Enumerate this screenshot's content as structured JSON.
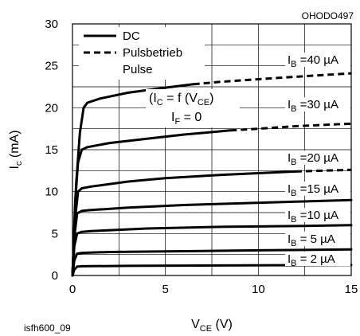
{
  "doc_code": "OHODO497",
  "figure_id": "isfh600_09",
  "chart_data": {
    "type": "line",
    "xlabel": "VCE (V)",
    "ylabel": "Ic (mA)",
    "xlim": [
      0,
      15
    ],
    "ylim": [
      0,
      30
    ],
    "x_ticks": [
      0,
      5,
      10,
      15
    ],
    "y_ticks": [
      0,
      5,
      10,
      15,
      20,
      25,
      30
    ],
    "grid": true,
    "legend": {
      "placement": "top-left",
      "entries": [
        {
          "label": "DC",
          "style": "solid"
        },
        {
          "label": "Pulsbetrieb",
          "style": "dashed"
        },
        {
          "label": "Pulse",
          "style": "none"
        }
      ]
    },
    "annotations": [
      "(IC = f (VCE)",
      "IF = 0"
    ],
    "series": [
      {
        "name": "IB = 40 µA",
        "label_main": "I",
        "label_sub": "B",
        "label_rest": " =40 µA",
        "dc": [
          [
            0,
            0
          ],
          [
            0.2,
            11
          ],
          [
            0.4,
            17
          ],
          [
            0.6,
            20
          ],
          [
            0.8,
            20.6
          ],
          [
            1.5,
            21.1
          ],
          [
            3,
            21.8
          ],
          [
            5,
            22.4
          ],
          [
            6.5,
            22.8
          ]
        ],
        "pulse": [
          [
            6.5,
            22.8
          ],
          [
            8,
            23.1
          ],
          [
            10,
            23.4
          ],
          [
            12,
            23.7
          ],
          [
            15,
            24.1
          ]
        ]
      },
      {
        "name": "IB = 30 µA",
        "label_main": "I",
        "label_sub": "B",
        "label_rest": " =30 µA",
        "dc": [
          [
            0,
            0
          ],
          [
            0.15,
            9
          ],
          [
            0.3,
            13.5
          ],
          [
            0.5,
            15.0
          ],
          [
            0.8,
            15.3
          ],
          [
            2,
            15.8
          ],
          [
            4,
            16.3
          ],
          [
            6,
            16.8
          ],
          [
            8.5,
            17.3
          ]
        ],
        "pulse": [
          [
            8.5,
            17.3
          ],
          [
            10,
            17.5
          ],
          [
            12,
            17.8
          ],
          [
            15,
            18.1
          ]
        ]
      },
      {
        "name": "IB = 20 µA",
        "label_main": "I",
        "label_sub": "B",
        "label_rest": " =20 µA",
        "dc": [
          [
            0,
            0
          ],
          [
            0.15,
            7
          ],
          [
            0.3,
            10.0
          ],
          [
            0.5,
            10.4
          ],
          [
            1,
            10.6
          ],
          [
            3,
            11.2
          ],
          [
            5,
            11.6
          ],
          [
            8,
            12.0
          ],
          [
            10,
            12.2
          ],
          [
            12,
            12.4
          ]
        ],
        "pulse": [
          [
            12,
            12.4
          ],
          [
            13.5,
            12.5
          ],
          [
            15,
            12.6
          ]
        ]
      },
      {
        "name": "IB = 15 µA",
        "label_main": "I",
        "label_sub": "B",
        "label_rest": " =15 µA",
        "dc": [
          [
            0,
            0
          ],
          [
            0.12,
            5
          ],
          [
            0.25,
            7.4
          ],
          [
            0.5,
            7.7
          ],
          [
            1,
            7.8
          ],
          [
            3,
            8.1
          ],
          [
            6,
            8.4
          ],
          [
            9,
            8.6
          ],
          [
            12,
            8.8
          ],
          [
            15,
            9.0
          ]
        ]
      },
      {
        "name": "IB = 10 µA",
        "label_main": "I",
        "label_sub": "B",
        "label_rest": " =10 µA",
        "dc": [
          [
            0,
            0
          ],
          [
            0.1,
            3.5
          ],
          [
            0.25,
            5.0
          ],
          [
            0.5,
            5.2
          ],
          [
            1,
            5.3
          ],
          [
            4,
            5.6
          ],
          [
            8,
            5.8
          ],
          [
            12,
            5.9
          ],
          [
            15,
            6.0
          ]
        ]
      },
      {
        "name": "IB = 5 µA",
        "label_main": "I",
        "label_sub": "B",
        "label_rest": " = 5 µA",
        "dc": [
          [
            0,
            0
          ],
          [
            0.1,
            1.8
          ],
          [
            0.25,
            2.6
          ],
          [
            0.5,
            2.7
          ],
          [
            2,
            2.8
          ],
          [
            6,
            2.9
          ],
          [
            10,
            3.0
          ],
          [
            15,
            3.1
          ]
        ]
      },
      {
        "name": "IB = 2 µA",
        "label_main": "I",
        "label_sub": "B",
        "label_rest": " = 2 µA",
        "dc": [
          [
            0,
            0
          ],
          [
            0.1,
            0.7
          ],
          [
            0.25,
            1.05
          ],
          [
            0.5,
            1.1
          ],
          [
            3,
            1.15
          ],
          [
            8,
            1.2
          ],
          [
            15,
            1.25
          ]
        ]
      }
    ]
  }
}
